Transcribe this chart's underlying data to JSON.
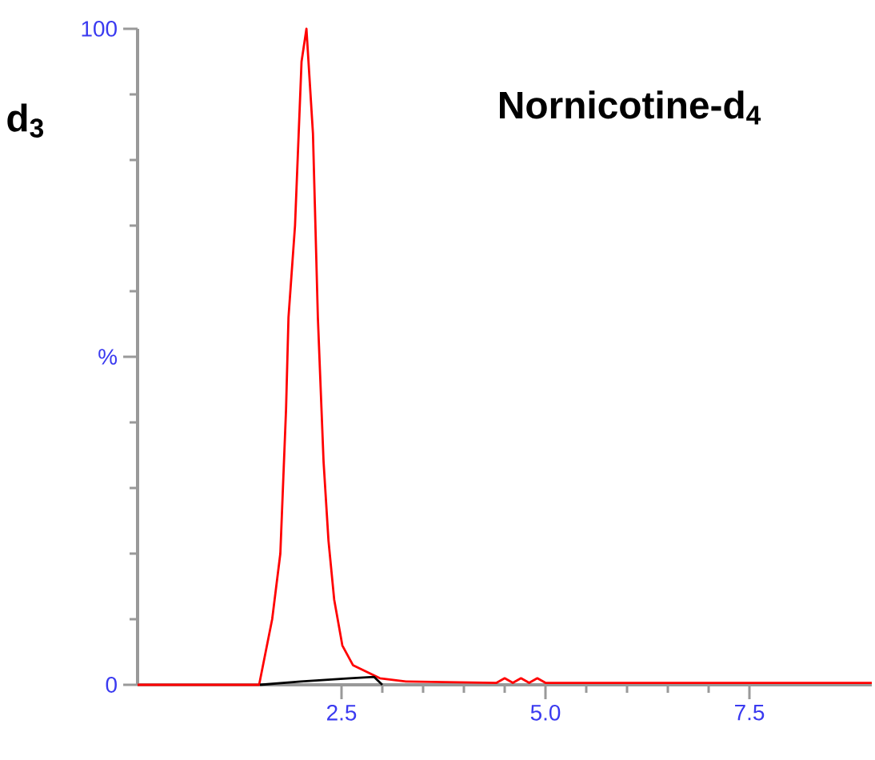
{
  "chart_data": {
    "type": "line",
    "title": "**Nornicotine-d$_{4}$**",
    "annotations": [
      "**d$_{3}$**"
    ],
    "xlim": [
      0,
      9
    ],
    "ylim": [
      0,
      100
    ],
    "xticks": [
      {
        "value": 2.5,
        "label": "2.5"
      },
      {
        "value": 5.0,
        "label": "5.0"
      },
      {
        "value": 7.5,
        "label": "7.5"
      }
    ],
    "yticks": [
      0,
      {
        "value": 50,
        "label": "%"
      },
      100
    ],
    "grid": false,
    "marker": "none",
    "line_style": "solid",
    "series": [
      {
        "color": "#ff0000",
        "x": [
          0,
          1.0,
          1.49,
          1.65,
          1.75,
          1.82,
          1.85,
          1.93,
          2.01,
          2.07,
          2.15,
          2.21,
          2.28,
          2.34,
          2.41,
          2.51,
          2.64,
          2.97,
          3.29,
          4.4,
          4.5,
          4.6,
          4.7,
          4.8,
          4.9,
          5.0,
          6.0,
          7.0,
          8.0,
          9.0
        ],
        "values": [
          0,
          0,
          0,
          10,
          20,
          42,
          56,
          70,
          95,
          100,
          84,
          56,
          34,
          22,
          13,
          6,
          3,
          1,
          0.5,
          0.3,
          1,
          0.3,
          1,
          0.3,
          1,
          0.3,
          0.3,
          0.3,
          0.3,
          0.3
        ]
      },
      {
        "color": "#000000",
        "x": [
          1.5,
          2.0,
          2.6,
          2.9,
          3.0
        ],
        "values": [
          0,
          0.5,
          1,
          1.2,
          0
        ]
      }
    ]
  }
}
